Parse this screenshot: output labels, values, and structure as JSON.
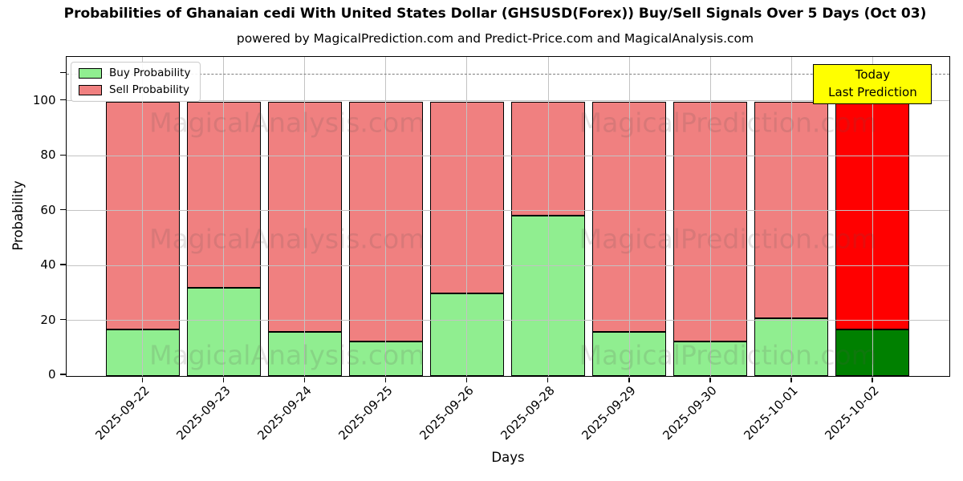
{
  "chart_data": {
    "type": "bar",
    "stacked": true,
    "title": "Probabilities of Ghanaian cedi With United States Dollar (GHSUSD(Forex)) Buy/Sell Signals Over 5 Days (Oct 03)",
    "subtitle": "powered by MagicalPrediction.com and Predict-Price.com and MagicalAnalysis.com",
    "xlabel": "Days",
    "ylabel": "Probability",
    "categories": [
      "2025-09-22",
      "2025-09-23",
      "2025-09-24",
      "2025-09-25",
      "2025-09-26",
      "2025-09-28",
      "2025-09-29",
      "2025-09-30",
      "2025-10-01",
      "2025-10-02"
    ],
    "series": [
      {
        "name": "Buy Probability",
        "color": "#90ee90",
        "today_color": "#008000",
        "values": [
          17,
          32,
          16,
          12.5,
          30,
          58.5,
          16,
          12.5,
          21,
          17
        ]
      },
      {
        "name": "Sell Probability",
        "color": "#f08080",
        "today_color": "#ff0000",
        "values": [
          83,
          68,
          84,
          87.5,
          70,
          41.5,
          84,
          87.5,
          79,
          83
        ]
      }
    ],
    "today_index": 9,
    "ylim": [
      0,
      116
    ],
    "yticks": [
      0,
      20,
      40,
      60,
      80,
      100
    ],
    "dashed_line_y": 110,
    "grid": true,
    "legend_position": "top-left",
    "annotation": {
      "line1": "Today",
      "line2": "Last Prediction"
    },
    "watermarks": {
      "left": "MagicalAnalysis.com",
      "right": "MagicalPrediction.com"
    },
    "colors": {
      "dashed_line": "#7f7f7f",
      "annotation_bg": "#ffff00",
      "grid": "#c3c3c3"
    }
  }
}
